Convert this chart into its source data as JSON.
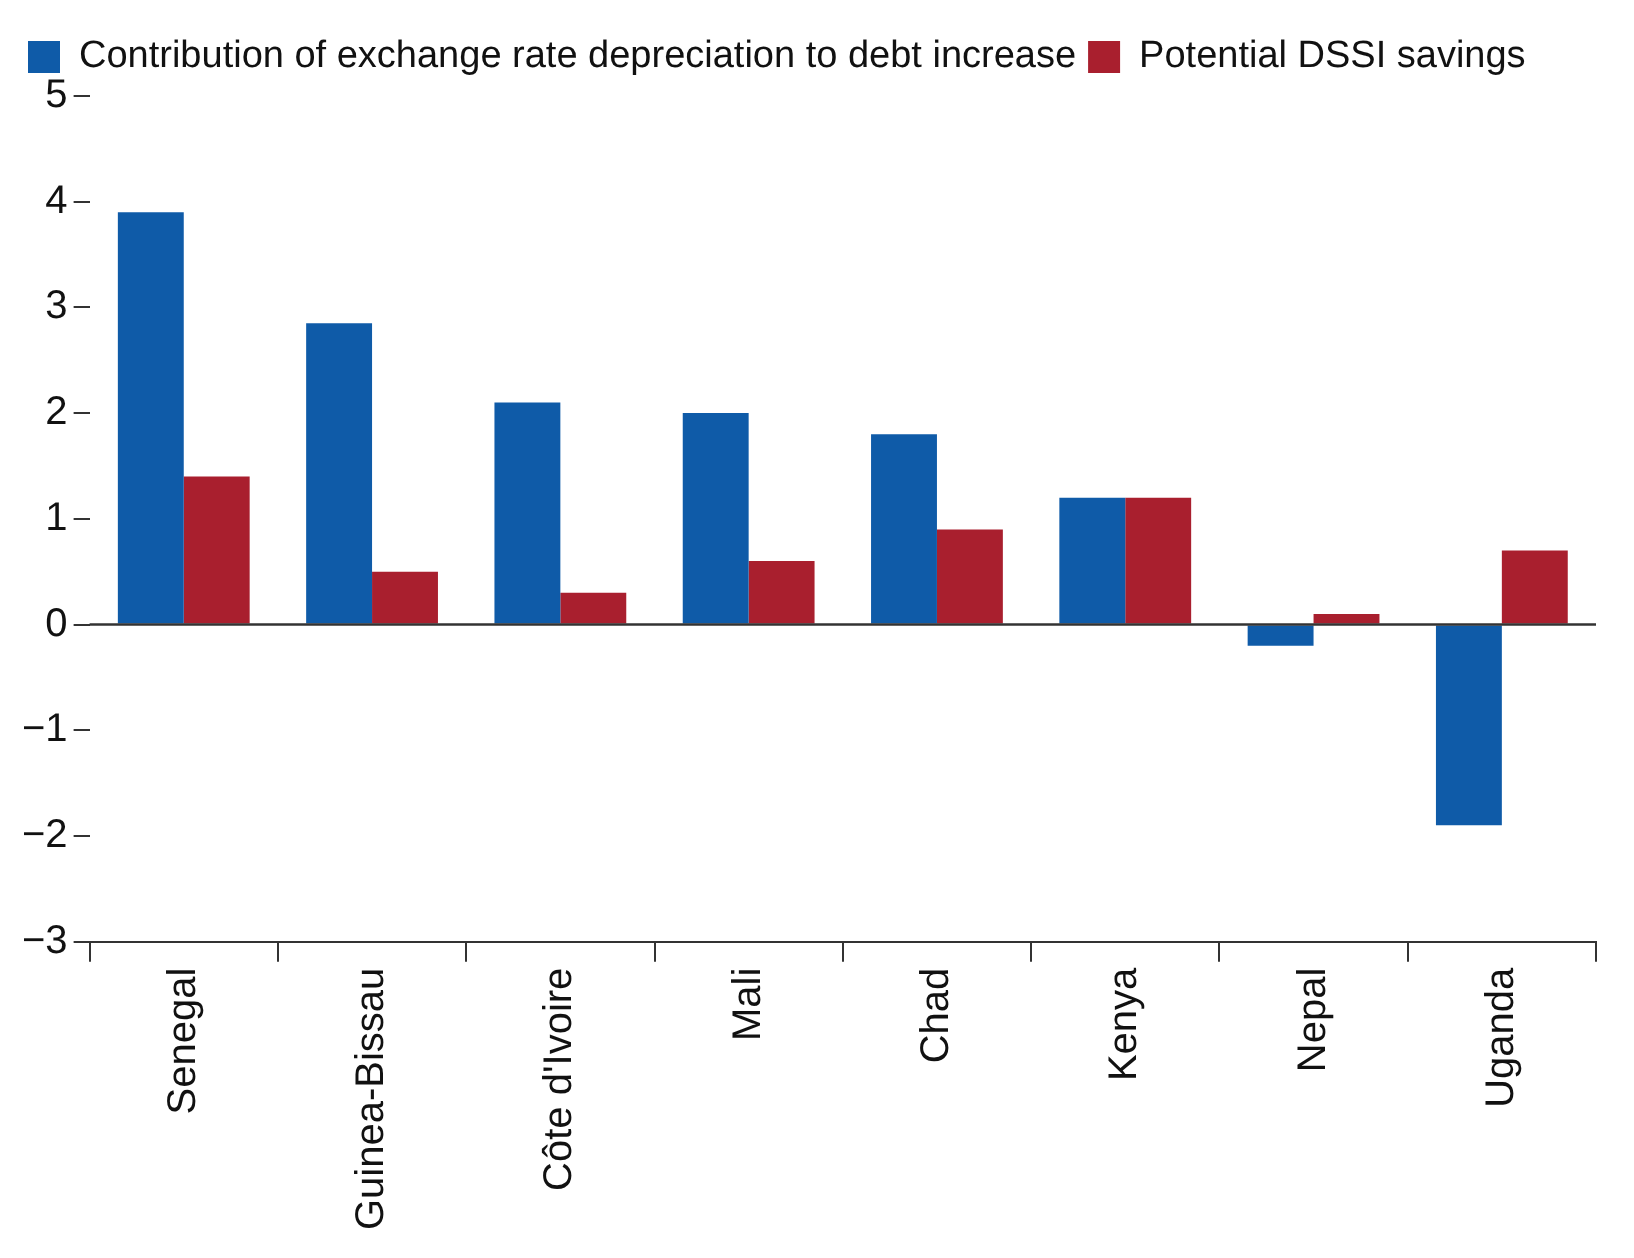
{
  "chart_data": {
    "type": "bar",
    "categories": [
      "Senegal",
      "Guinea-Bissau",
      "Côte d'Ivoire",
      "Mali",
      "Chad",
      "Kenya",
      "Nepal",
      "Uganda"
    ],
    "series": [
      {
        "name": "Contribution of exchange rate depreciation to debt increase",
        "color": "#0f5ba8",
        "values": [
          3.9,
          2.85,
          2.1,
          2.0,
          1.8,
          1.2,
          -0.2,
          -1.9
        ]
      },
      {
        "name": "Potential DSSI savings",
        "color": "#a91f2e",
        "values": [
          1.4,
          0.5,
          0.3,
          0.6,
          0.9,
          1.2,
          0.1,
          0.7
        ]
      }
    ],
    "ylim": [
      -3,
      5
    ],
    "yticks": [
      -3,
      -2,
      -1,
      0,
      1,
      2,
      3,
      4,
      5
    ],
    "grid": false,
    "legend": "top left",
    "ref_lines": [
      {
        "axis": "y",
        "value": 0,
        "color": "#333333"
      }
    ]
  }
}
